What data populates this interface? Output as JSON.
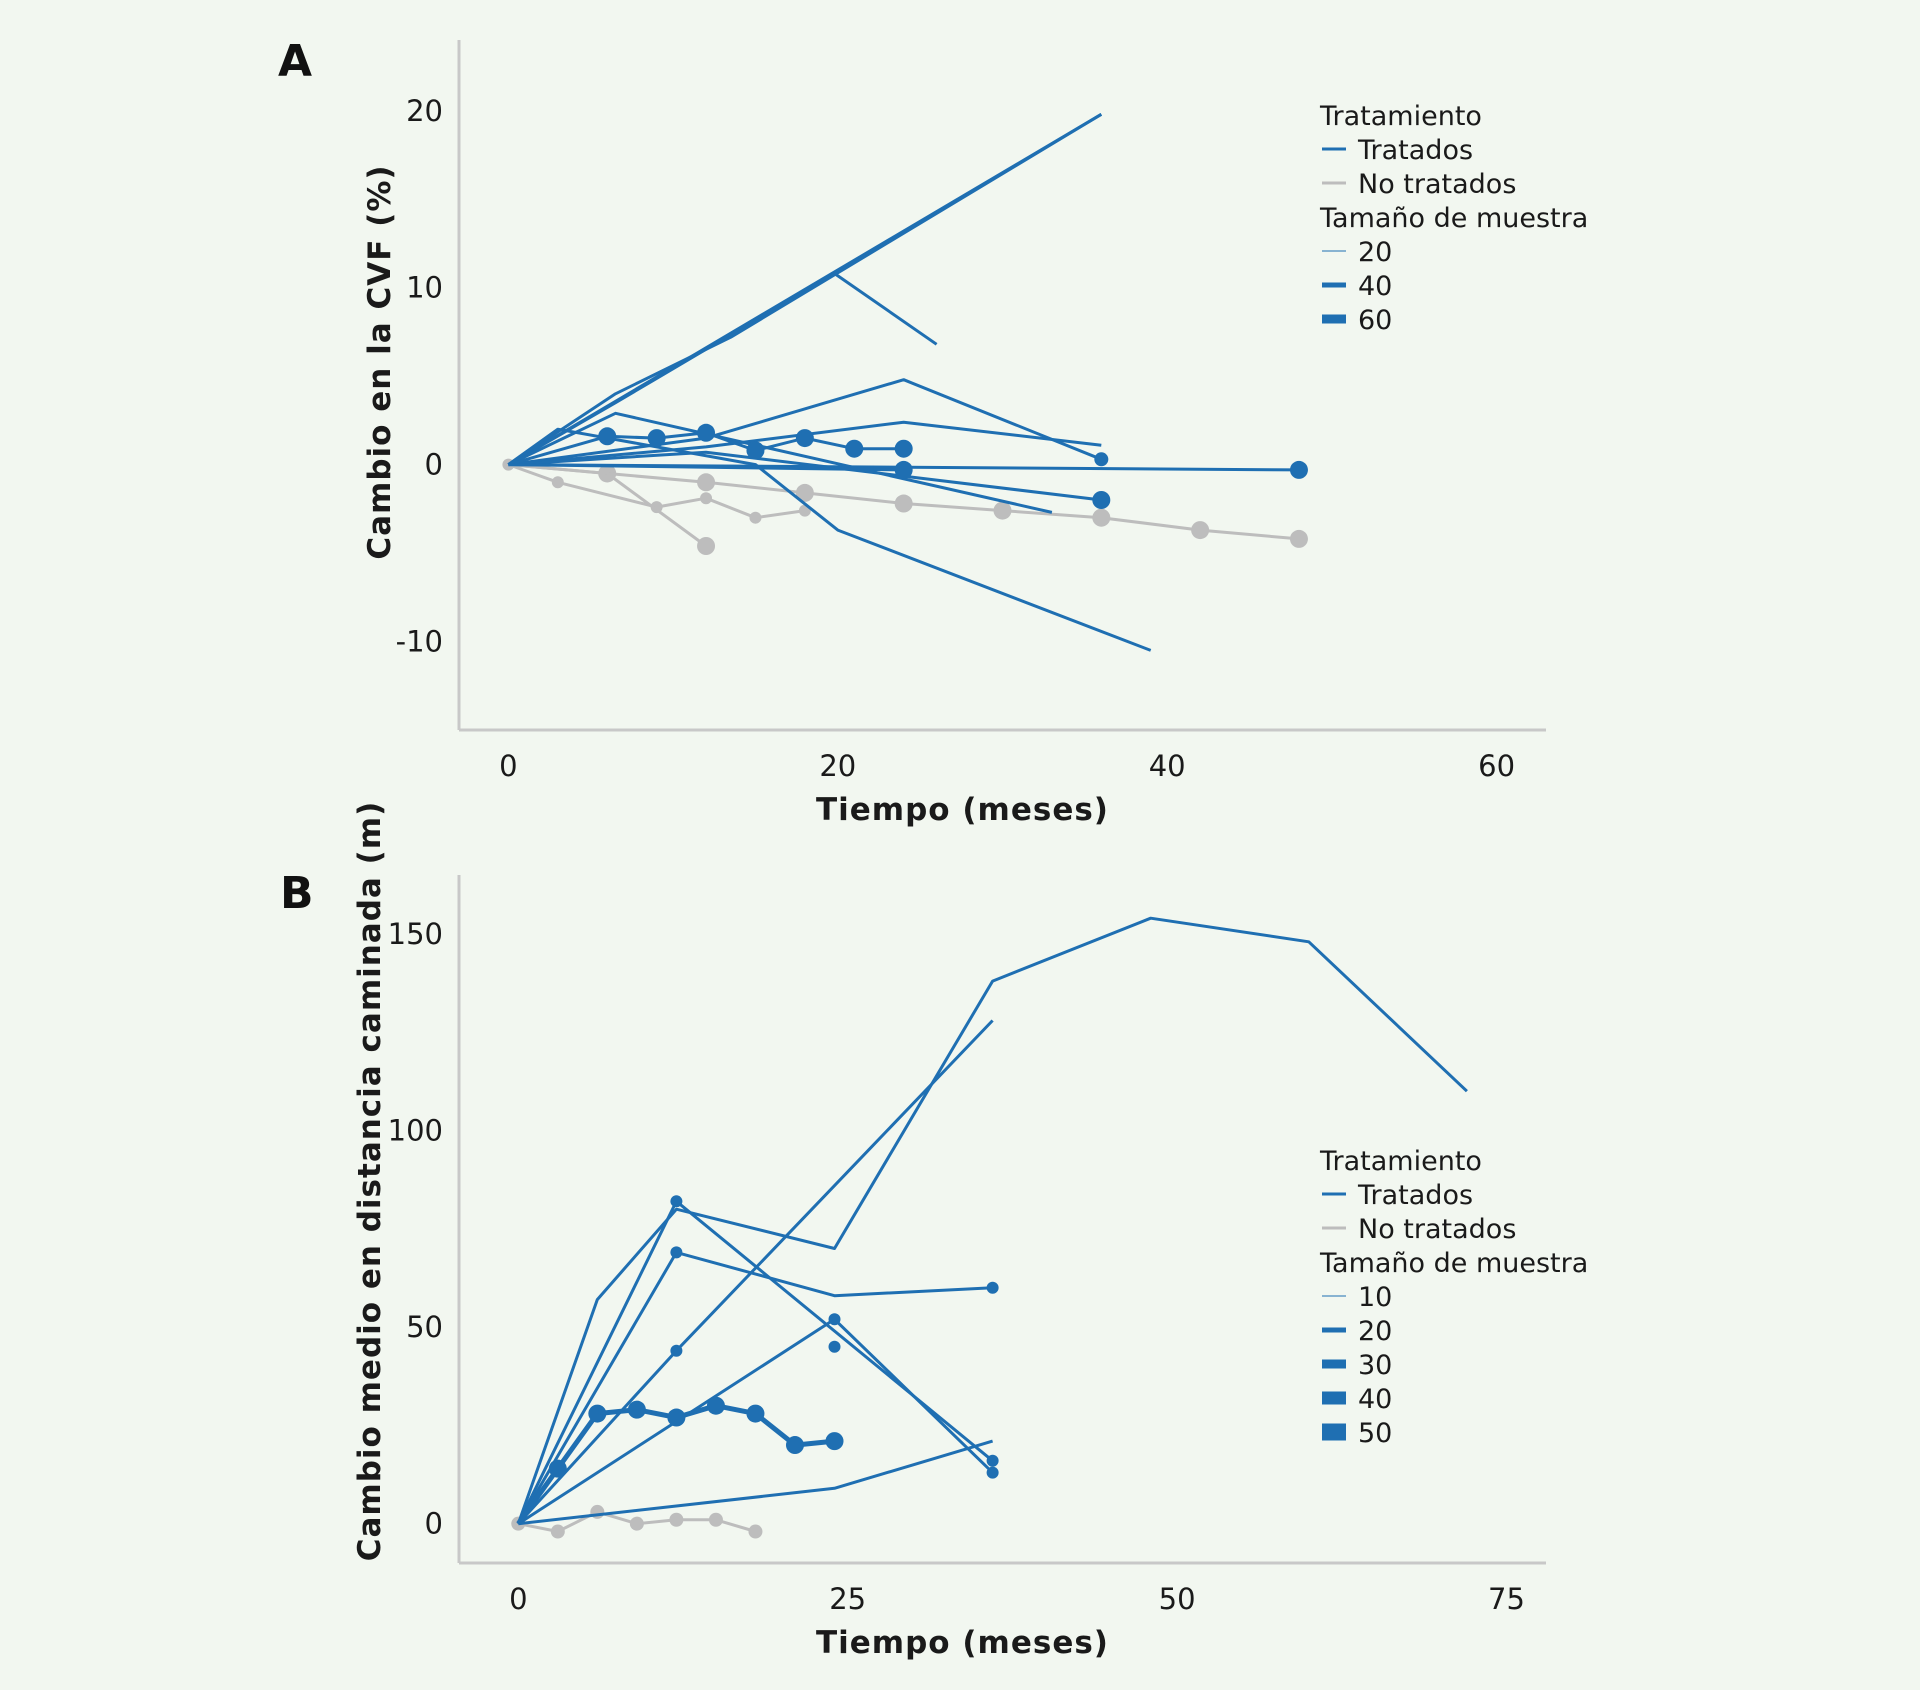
{
  "colors": {
    "treated": "#1f6fb2",
    "untreated": "#bdbdbd"
  },
  "chart_data": [
    {
      "type": "line",
      "panel": "A",
      "xlabel": "Tiempo (meses)",
      "ylabel": "Cambio en la CVF (%)",
      "xlim": [
        -3,
        63
      ],
      "ylim": [
        -15,
        24
      ],
      "xticks": [
        0,
        20,
        40,
        60
      ],
      "yticks": [
        20,
        10,
        0,
        -10
      ],
      "legend": {
        "position": "top-right",
        "treatment_title": "Tratamiento",
        "treated_label": "Tratados",
        "untreated_label": "No tratados",
        "size_title": "Tamaño de muestra",
        "sizes": [
          "20",
          "40",
          "60"
        ]
      },
      "series": [
        {
          "group": "treated",
          "points": [
            [
              0,
              0
            ],
            [
              36,
              19.8
            ]
          ]
        },
        {
          "group": "treated",
          "points": [
            [
              0,
              0
            ],
            [
              6.5,
              3.5
            ],
            [
              19.8,
              10.8
            ],
            [
              26,
              6.8
            ]
          ]
        },
        {
          "group": "treated",
          "points": [
            [
              0,
              0
            ],
            [
              6.5,
              4
            ],
            [
              13.5,
              7.2
            ],
            [
              36,
              19.8
            ]
          ]
        },
        {
          "group": "treated",
          "points": [
            [
              0,
              0
            ],
            [
              12,
              1.5
            ],
            [
              24,
              4.8
            ],
            [
              36,
              0.3
            ]
          ],
          "markers": [
            [
              36,
              0.3
            ]
          ],
          "msize": 7
        },
        {
          "group": "treated",
          "points": [
            [
              0,
              0
            ],
            [
              12,
              1
            ],
            [
              24,
              2.4
            ],
            [
              36,
              1.1
            ]
          ]
        },
        {
          "group": "treated",
          "points": [
            [
              0,
              0
            ],
            [
              3,
              2
            ],
            [
              15,
              0
            ],
            [
              20,
              -3.7
            ],
            [
              39,
              -10.5
            ]
          ]
        },
        {
          "group": "treated",
          "points": [
            [
              0,
              0
            ],
            [
              6.5,
              2.9
            ],
            [
              33,
              -2.7
            ]
          ]
        },
        {
          "group": "treated",
          "points": [
            [
              0,
              0
            ],
            [
              12,
              0.7
            ],
            [
              36,
              -2
            ]
          ],
          "markers": [
            [
              36,
              -2
            ]
          ],
          "msize": 9
        },
        {
          "group": "treated",
          "points": [
            [
              0,
              0
            ],
            [
              48,
              -0.3
            ]
          ],
          "markers": [
            [
              48,
              -0.3
            ]
          ],
          "msize": 9
        },
        {
          "group": "treated",
          "points": [
            [
              0,
              0
            ],
            [
              6,
              1.6
            ],
            [
              9,
              1.5
            ],
            [
              12,
              1.8
            ],
            [
              15,
              0.8
            ],
            [
              18,
              1.5
            ],
            [
              21,
              0.9
            ],
            [
              24,
              0.9
            ]
          ],
          "markers": [
            [
              6,
              1.6
            ],
            [
              9,
              1.5
            ],
            [
              12,
              1.8
            ],
            [
              15,
              0.8
            ],
            [
              18,
              1.5
            ],
            [
              21,
              0.9
            ],
            [
              24,
              0.9
            ]
          ],
          "msize": 9
        },
        {
          "group": "treated",
          "points": [
            [
              0,
              0
            ],
            [
              24,
              -0.3
            ]
          ],
          "markers": [
            [
              24,
              -0.3
            ]
          ],
          "msize": 9
        },
        {
          "group": "untreated",
          "points": [
            [
              0,
              0
            ],
            [
              3,
              -1
            ],
            [
              9,
              -2.4
            ],
            [
              12,
              -1.9
            ],
            [
              15,
              -3
            ],
            [
              18,
              -2.6
            ]
          ],
          "markers": [
            [
              0,
              0
            ],
            [
              3,
              -1
            ],
            [
              9,
              -2.4
            ],
            [
              12,
              -1.9
            ],
            [
              15,
              -3
            ],
            [
              18,
              -2.6
            ]
          ],
          "msize": 6
        },
        {
          "group": "untreated",
          "points": [
            [
              0,
              0
            ],
            [
              6,
              -0.5
            ],
            [
              12,
              -4.6
            ]
          ],
          "markers": [
            [
              6,
              -0.5
            ],
            [
              12,
              -4.6
            ]
          ],
          "msize": 9
        },
        {
          "group": "untreated",
          "points": [
            [
              0,
              0
            ],
            [
              12,
              -1
            ],
            [
              18,
              -1.6
            ],
            [
              24,
              -2.2
            ],
            [
              30,
              -2.6
            ],
            [
              36,
              -3
            ],
            [
              42,
              -3.7
            ],
            [
              48,
              -4.2
            ]
          ],
          "markers": [
            [
              12,
              -1
            ],
            [
              18,
              -1.6
            ],
            [
              24,
              -2.2
            ],
            [
              30,
              -2.6
            ],
            [
              36,
              -3
            ],
            [
              42,
              -3.7
            ],
            [
              48,
              -4.2
            ]
          ],
          "msize": 9
        }
      ]
    },
    {
      "type": "line",
      "panel": "B",
      "xlabel": "Tiempo (meses)",
      "ylabel": "Cambio medio en distancia caminada (m)",
      "xlim": [
        -4.5,
        78
      ],
      "ylim": [
        -10,
        165
      ],
      "xticks": [
        0,
        25,
        50,
        75
      ],
      "yticks": [
        150,
        100,
        50,
        0
      ],
      "legend": {
        "position": "center-right",
        "treatment_title": "Tratamiento",
        "treated_label": "Tratados",
        "untreated_label": "No tratados",
        "size_title": "Tamaño de muestra",
        "sizes": [
          "10",
          "20",
          "30",
          "40",
          "50"
        ]
      },
      "series": [
        {
          "group": "treated",
          "points": [
            [
              0,
              0
            ],
            [
              6,
              57
            ],
            [
              12,
              80
            ],
            [
              24,
              70
            ],
            [
              36,
              138
            ],
            [
              48,
              154
            ],
            [
              60,
              148
            ],
            [
              72,
              110
            ]
          ]
        },
        {
          "group": "treated",
          "points": [
            [
              0,
              0
            ],
            [
              12,
              44
            ],
            [
              36,
              128
            ]
          ],
          "markers": [
            [
              12,
              44
            ]
          ],
          "msize": 6
        },
        {
          "group": "treated",
          "points": [
            [
              0,
              0
            ],
            [
              12,
              82
            ],
            [
              36,
              16
            ]
          ],
          "markers": [
            [
              12,
              82
            ],
            [
              36,
              16
            ]
          ],
          "msize": 6
        },
        {
          "group": "treated",
          "points": [
            [
              0,
              0
            ],
            [
              12,
              69
            ],
            [
              24,
              58
            ],
            [
              36,
              60
            ]
          ],
          "markers": [
            [
              12,
              69
            ],
            [
              36,
              60
            ]
          ],
          "msize": 6
        },
        {
          "group": "treated",
          "points": [
            [
              0,
              0
            ],
            [
              24,
              52
            ],
            [
              36,
              13
            ]
          ],
          "markers": [
            [
              24,
              52
            ],
            [
              24,
              45
            ],
            [
              36,
              13
            ]
          ],
          "msize": 6
        },
        {
          "group": "treated",
          "points": [
            [
              0,
              0
            ],
            [
              24,
              9
            ],
            [
              36,
              21
            ]
          ]
        },
        {
          "group": "treated",
          "points": [
            [
              0,
              0
            ],
            [
              3,
              14
            ],
            [
              6,
              28
            ],
            [
              9,
              29
            ],
            [
              12,
              27
            ],
            [
              15,
              30
            ],
            [
              18,
              28
            ],
            [
              21,
              20
            ],
            [
              24,
              21
            ]
          ],
          "markers": [
            [
              3,
              14
            ],
            [
              6,
              28
            ],
            [
              9,
              29
            ],
            [
              12,
              27
            ],
            [
              15,
              30
            ],
            [
              18,
              28
            ],
            [
              21,
              20
            ],
            [
              24,
              21
            ]
          ],
          "msize": 9,
          "width": 5
        },
        {
          "group": "untreated",
          "points": [
            [
              0,
              0
            ],
            [
              3,
              -2
            ],
            [
              6,
              3
            ],
            [
              9,
              0
            ],
            [
              12,
              1
            ],
            [
              15,
              1
            ],
            [
              18,
              -2
            ]
          ],
          "markers": [
            [
              0,
              0
            ],
            [
              3,
              -2
            ],
            [
              6,
              3
            ],
            [
              9,
              0
            ],
            [
              12,
              1
            ],
            [
              15,
              1
            ],
            [
              18,
              -2
            ]
          ],
          "msize": 7
        }
      ]
    }
  ],
  "panels": [
    {
      "letter": "A"
    },
    {
      "letter": "B"
    }
  ]
}
